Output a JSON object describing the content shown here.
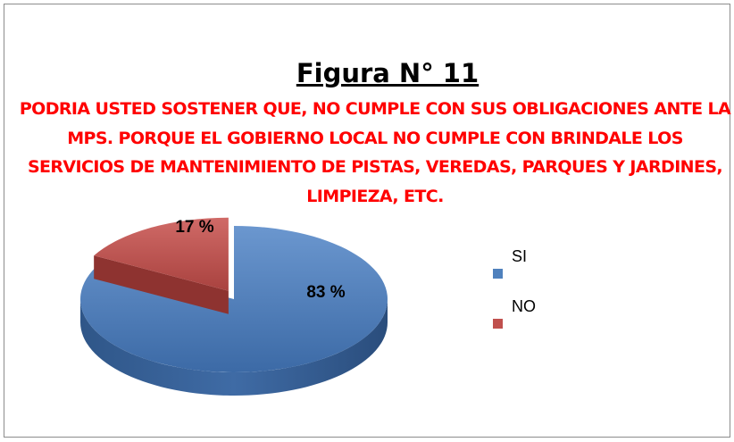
{
  "chart_data": {
    "type": "pie",
    "title": "Figura N° 11",
    "subtitle": "PODRIA USTED SOSTENER QUE, NO  CUMPLE CON SUS OBLIGACIONES ANTE LA MPS. PORQUE EL GOBIERNO LOCAL NO CUMPLE CON BRINDALE LOS SERVICIOS DE MANTENIMIENTO DE PISTAS, VEREDAS, PARQUES Y JARDINES, LIMPIEZA, ETC.",
    "categories": [
      "SI",
      "NO"
    ],
    "values": [
      83,
      17
    ],
    "value_labels": [
      "83 %",
      "17 %"
    ],
    "colors": [
      "#4f81bd",
      "#c0504d"
    ],
    "legend": "right"
  }
}
